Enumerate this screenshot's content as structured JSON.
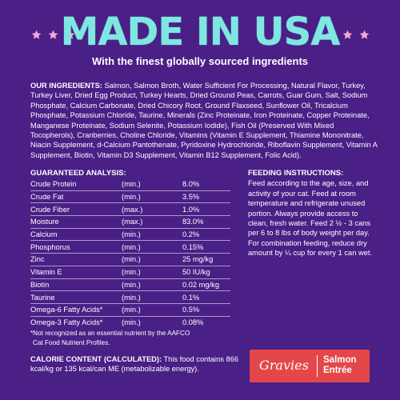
{
  "header": {
    "title": "MADE IN USA",
    "subtitle": "With the finest globally sourced ingredients",
    "star_color": "#f7a8d8",
    "title_color": "#7ee8e0"
  },
  "ingredients": {
    "label": "OUR INGREDIENTS:",
    "text": "Salmon, Salmon Broth, Water Sufficient For Processing, Natural Flavor, Turkey, Turkey Liver, Dried Egg Product, Turkey Hearts, Dried Ground Peas, Carrots, Guar Gum, Salt, Sodium Phosphate, Calcium Carbonate, Dried Chicory Root, Ground Flaxseed, Sunflower Oil, Tricalcium Phosphate, Potassium Chloride, Taurine, Minerals (Zinc Proteinate, Iron Proteinate, Copper Proteinate, Manganese Proteinate, Sodium Selenite, Potassium Iodide), Fish Oil (Preserved With Mixed Tocopherols), Cranberries, Choline Chloride, Vitamins (Vitamin E Supplement, Thiamine Mononitrate, Niacin Supplement, d-Calcium Pantothenate, Pyridoxine Hydrochloride, Riboflavin Supplement, Vitamin A Supplement, Biotin, Vitamin D3 Supplement, Vitamin B12 Supplement, Folic Acid)."
  },
  "guaranteed_analysis": {
    "heading": "GUARANTEED ANALYSIS:",
    "rows": [
      {
        "name": "Crude Protein",
        "basis": "(min.)",
        "value": "8.0%"
      },
      {
        "name": "Crude Fat",
        "basis": "(min.)",
        "value": "3.5%"
      },
      {
        "name": "Crude Fiber",
        "basis": "(max.)",
        "value": "1.0%"
      },
      {
        "name": "Moisture",
        "basis": "(max.)",
        "value": "83.0%"
      },
      {
        "name": "Calcium",
        "basis": "(min.)",
        "value": "0.2%"
      },
      {
        "name": "Phosphorus",
        "basis": "(min.)",
        "value": "0.15%"
      },
      {
        "name": "Zinc",
        "basis": "(min.)",
        "value": "25 mg/kg"
      },
      {
        "name": "Vitamin E",
        "basis": "(min.)",
        "value": "50 IU/kg"
      },
      {
        "name": "Biotin",
        "basis": "(min.)",
        "value": "0.02 mg/kg"
      },
      {
        "name": "Taurine",
        "basis": "(min.)",
        "value": "0.1%"
      },
      {
        "name": "Omega-6 Fatty Acids*",
        "basis": "(min.)",
        "value": "0.5%"
      },
      {
        "name": "Omega-3 Fatty Acids*",
        "basis": "(min.)",
        "value": "0.08%"
      }
    ]
  },
  "feeding": {
    "heading": "FEEDING INSTRUCTIONS:",
    "text": "Feed according to the age, size, and activity of your cat. Feed at room temperature and refrigerate unused portion. Always provide access to clean, fresh water. Feed 2 ½ - 3 cans per 6 to 8 lbs of body weight per day. For combination feeding, reduce dry amount by ¼ cup for every 1 can wet."
  },
  "footnote": {
    "line1": "*Not recognized as an essential nutrient by the AAFCO",
    "line2": "Cat Food Nutrient Profiles."
  },
  "calorie": {
    "label": "CALORIE CONTENT (CALCULATED):",
    "text": "This food contains 866 kcal/kg or 135 kcal/can ME (metabolizable energy)."
  },
  "badge": {
    "script": "Gravies",
    "line1": "Salmon",
    "line2": "Entrée",
    "color": "#e3474a"
  }
}
